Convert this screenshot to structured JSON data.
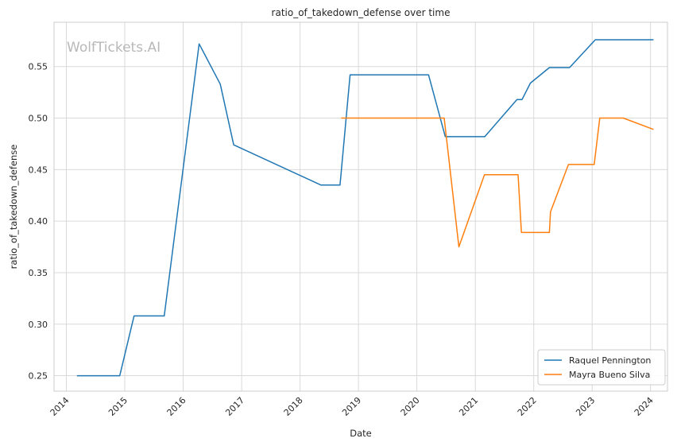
{
  "chart_data": {
    "type": "line",
    "title": "ratio_of_takedown_defense over time",
    "xlabel": "Date",
    "ylabel": "ratio_of_takedown_defense",
    "watermark": "WolfTickets.AI",
    "x_range": [
      "2013-10-16",
      "2024-04-16"
    ],
    "ylim": [
      0.235,
      0.593
    ],
    "x_ticks": [
      "2014",
      "2015",
      "2016",
      "2017",
      "2018",
      "2019",
      "2020",
      "2021",
      "2022",
      "2023",
      "2024"
    ],
    "y_ticks": [
      "0.25",
      "0.30",
      "0.35",
      "0.40",
      "0.45",
      "0.50",
      "0.55"
    ],
    "grid": true,
    "legend_position": "bottom-right",
    "series": [
      {
        "name": "Raquel Pennington",
        "color": "#1f77b4",
        "points": [
          [
            "2014-03-08",
            0.25
          ],
          [
            "2014-12-01",
            0.25
          ],
          [
            "2015-02-28",
            0.308
          ],
          [
            "2015-09-05",
            0.308
          ],
          [
            "2016-04-10",
            0.572
          ],
          [
            "2016-08-20",
            0.533
          ],
          [
            "2016-11-12",
            0.474
          ],
          [
            "2018-05-12",
            0.435
          ],
          [
            "2018-09-08",
            0.435
          ],
          [
            "2018-11-10",
            0.542
          ],
          [
            "2020-03-14",
            0.542
          ],
          [
            "2020-06-27",
            0.482
          ],
          [
            "2021-03-01",
            0.482
          ],
          [
            "2021-09-18",
            0.518
          ],
          [
            "2021-10-20",
            0.518
          ],
          [
            "2021-12-11",
            0.534
          ],
          [
            "2022-04-09",
            0.549
          ],
          [
            "2022-08-13",
            0.549
          ],
          [
            "2023-01-21",
            0.576
          ],
          [
            "2024-01-20",
            0.576
          ]
        ]
      },
      {
        "name": "Mayra Bueno Silva",
        "color": "#ff7f0e",
        "points": [
          [
            "2018-09-15",
            0.5
          ],
          [
            "2020-06-20",
            0.5
          ],
          [
            "2020-09-20",
            0.375
          ],
          [
            "2021-02-27",
            0.445
          ],
          [
            "2021-09-25",
            0.445
          ],
          [
            "2021-10-16",
            0.389
          ],
          [
            "2022-04-09",
            0.389
          ],
          [
            "2022-04-16",
            0.409
          ],
          [
            "2022-08-06",
            0.455
          ],
          [
            "2023-01-14",
            0.455
          ],
          [
            "2023-02-18",
            0.5
          ],
          [
            "2023-07-15",
            0.5
          ],
          [
            "2024-01-20",
            0.489
          ]
        ]
      }
    ]
  }
}
